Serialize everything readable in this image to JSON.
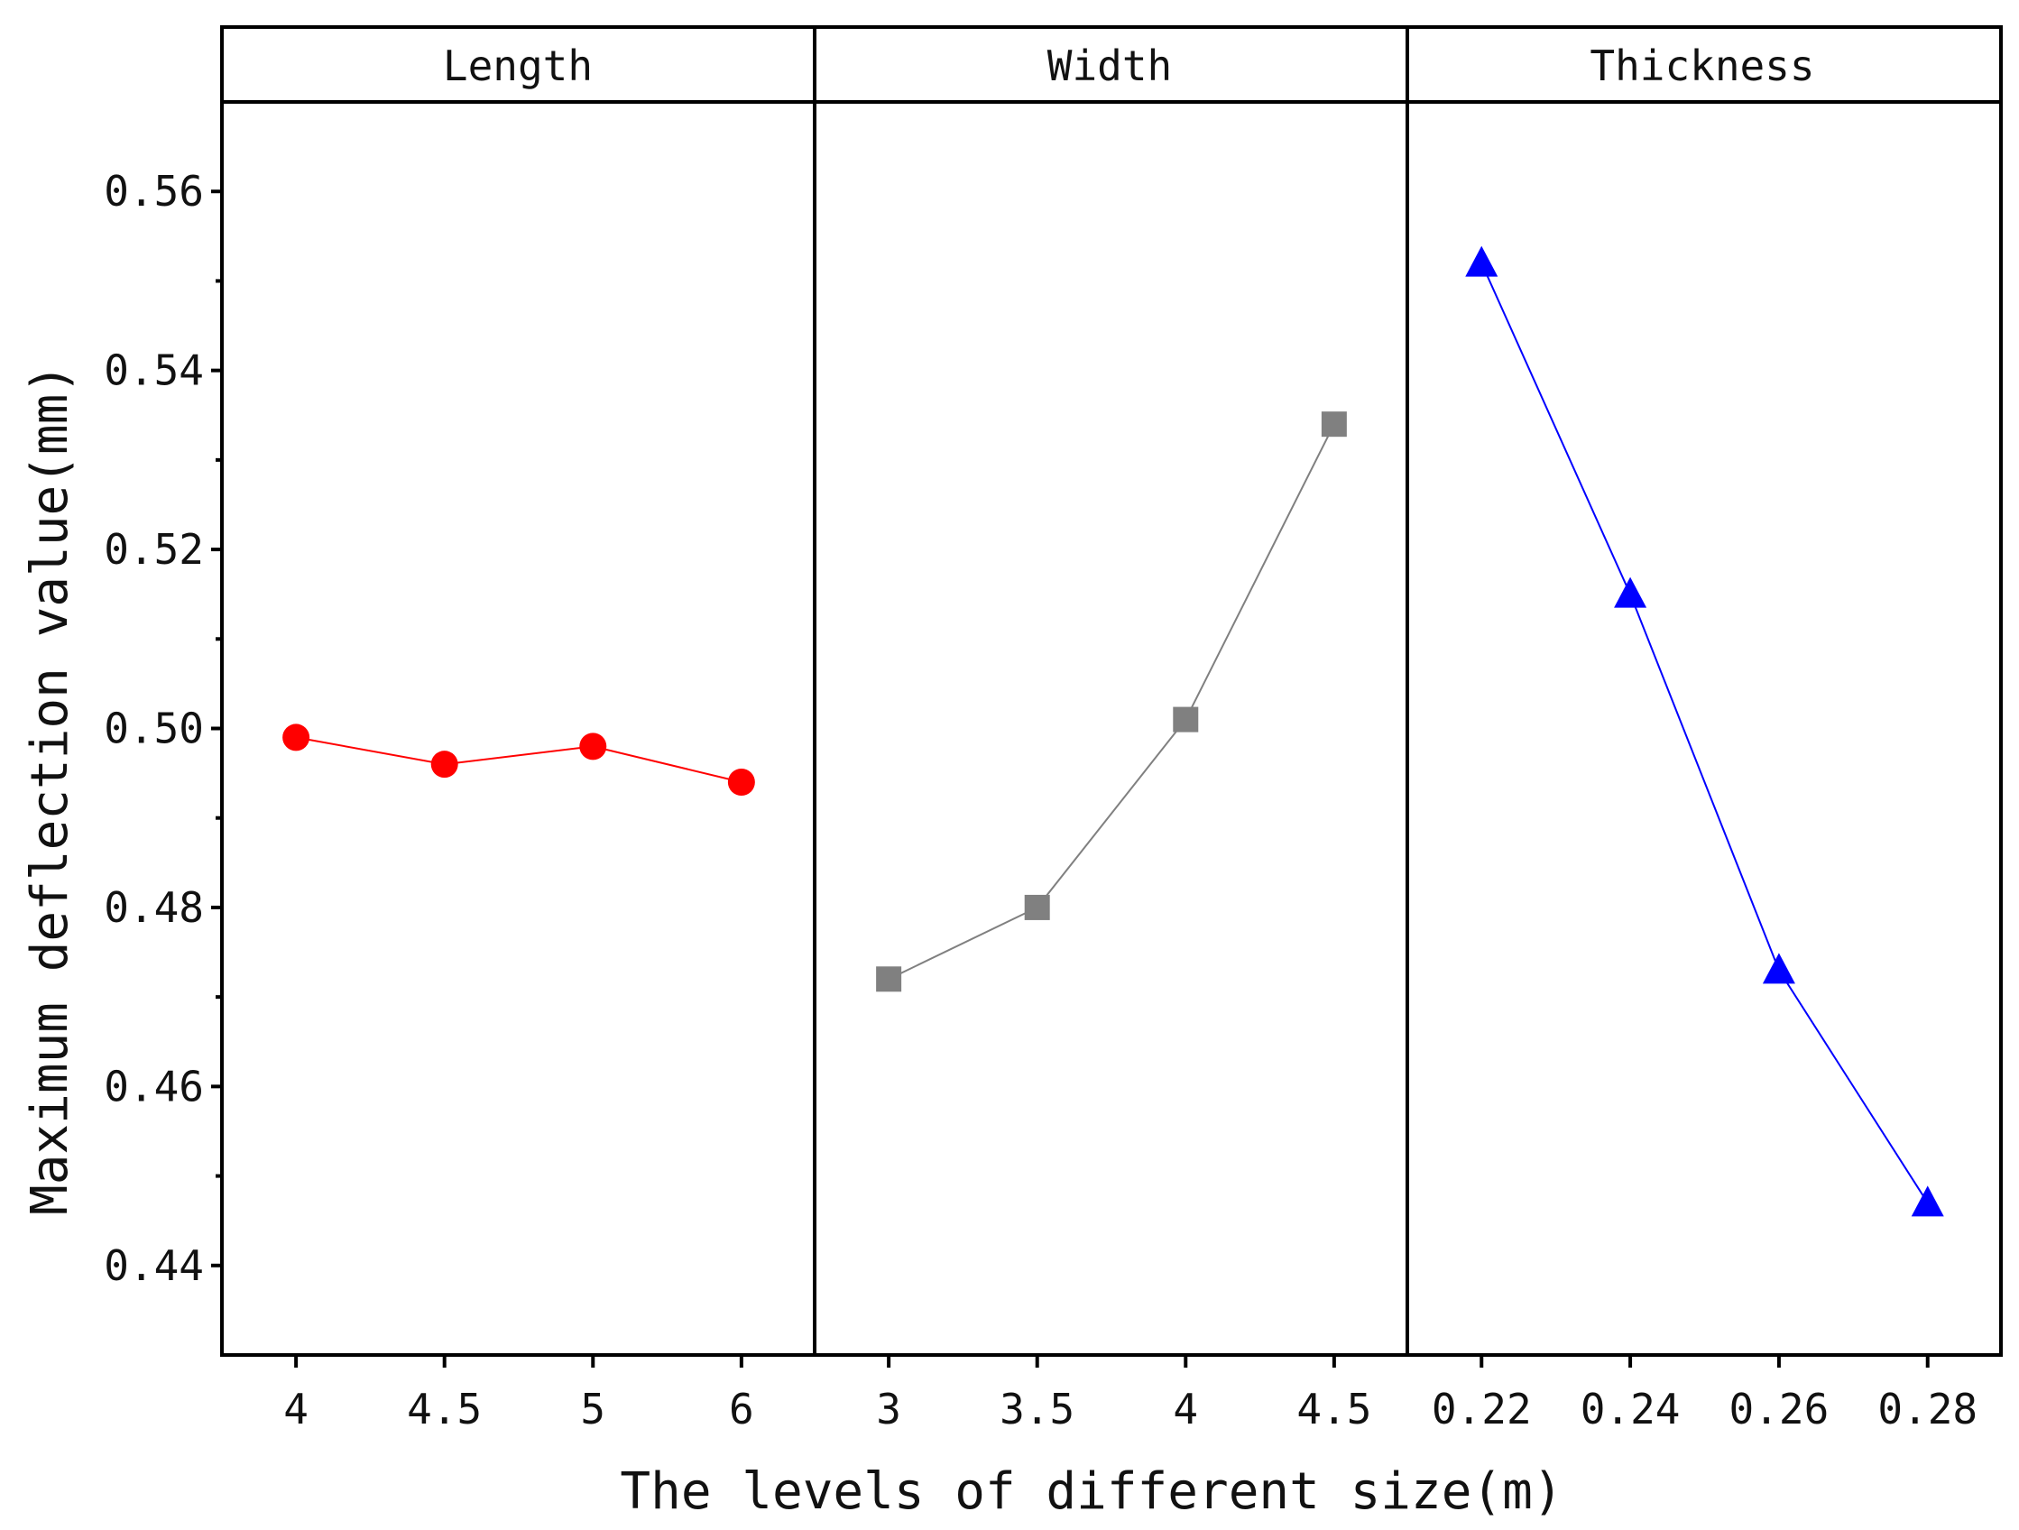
{
  "chart_data": {
    "type": "line",
    "xlabel": "The levels of different size(m)",
    "ylabel": "Maximum deflection value(mm)",
    "ylim": [
      0.43,
      0.57
    ],
    "yticks": [
      "0.44",
      "0.46",
      "0.48",
      "0.50",
      "0.52",
      "0.54",
      "0.56"
    ],
    "grid": false,
    "legend": "none",
    "panels": [
      {
        "title": "Length",
        "categories": [
          "4",
          "4.5",
          "5",
          "6"
        ],
        "values": [
          0.499,
          0.496,
          0.498,
          0.494
        ],
        "color": "#ff0000",
        "marker": "circle"
      },
      {
        "title": "Width",
        "categories": [
          "3",
          "3.5",
          "4",
          "4.5"
        ],
        "values": [
          0.472,
          0.48,
          0.501,
          0.534
        ],
        "color": "#808080",
        "marker": "square"
      },
      {
        "title": "Thickness",
        "categories": [
          "0.22",
          "0.24",
          "0.26",
          "0.28"
        ],
        "values": [
          0.552,
          0.515,
          0.473,
          0.447
        ],
        "color": "#0000ff",
        "marker": "triangle"
      }
    ]
  }
}
